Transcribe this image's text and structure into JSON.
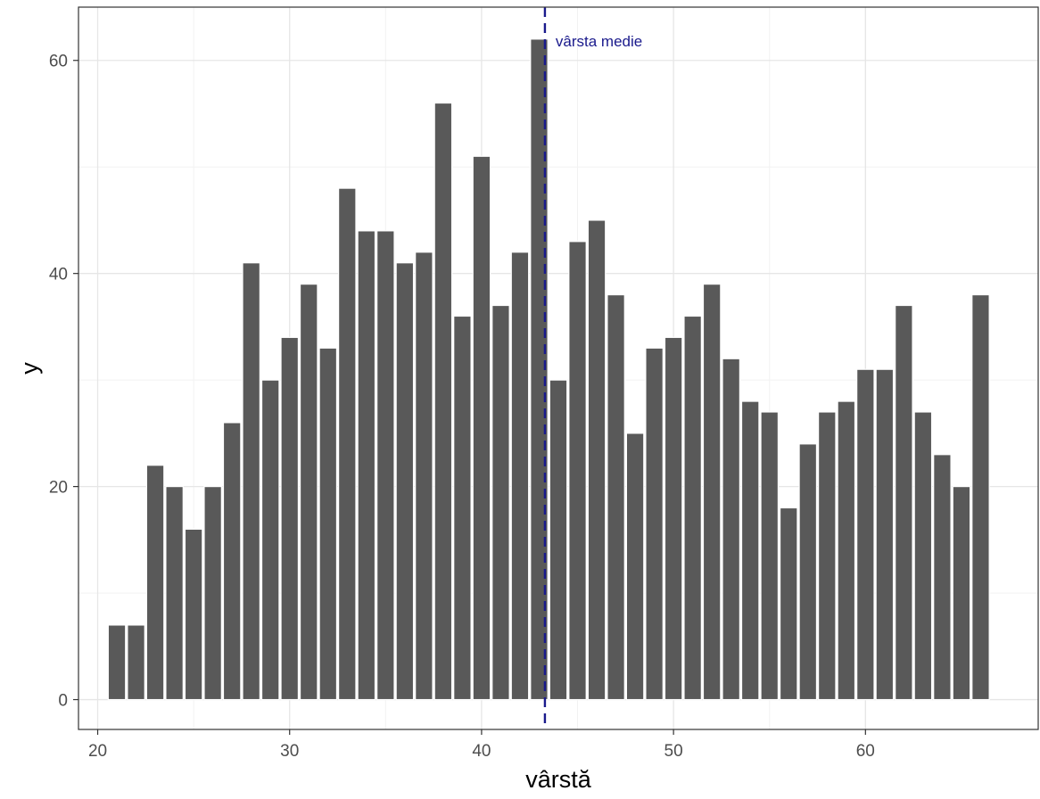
{
  "chart_data": {
    "type": "bar",
    "xlabel": "vârstă",
    "ylabel": "y",
    "xlim": [
      19,
      69
    ],
    "ylim": [
      -2.8,
      65
    ],
    "xticks": [
      20,
      30,
      40,
      50,
      60
    ],
    "yticks": [
      0,
      20,
      40,
      60
    ],
    "grid": true,
    "bar_color": "#595959",
    "bar_edge_color": "#ffffff",
    "x": [
      21,
      22,
      23,
      24,
      25,
      26,
      27,
      28,
      29,
      30,
      31,
      32,
      33,
      34,
      35,
      36,
      37,
      38,
      39,
      40,
      41,
      42,
      43,
      44,
      45,
      46,
      47,
      48,
      49,
      50,
      51,
      52,
      53,
      54,
      55,
      56,
      57,
      58,
      59,
      60,
      61,
      62,
      63,
      64,
      65,
      66
    ],
    "values": [
      7,
      7,
      22,
      20,
      16,
      20,
      26,
      41,
      30,
      34,
      39,
      33,
      48,
      44,
      44,
      41,
      42,
      56,
      36,
      51,
      37,
      42,
      62,
      30,
      43,
      45,
      38,
      25,
      33,
      34,
      36,
      39,
      32,
      28,
      27,
      18,
      24,
      27,
      28,
      31,
      31,
      37,
      27,
      23,
      20,
      38
    ],
    "mean_line": {
      "x": 43.3,
      "label": "vârsta medie",
      "color": "#1a1a8c",
      "style": "dashed"
    }
  }
}
